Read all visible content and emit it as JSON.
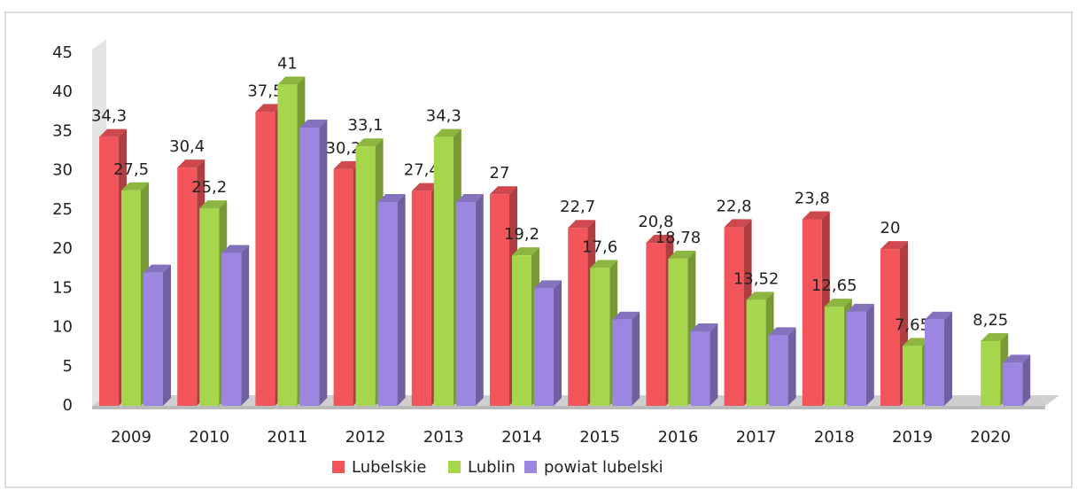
{
  "chart_data": {
    "type": "bar3d",
    "categories": [
      "2009",
      "2010",
      "2011",
      "2012",
      "2013",
      "2014",
      "2015",
      "2016",
      "2017",
      "2018",
      "2019",
      "2020"
    ],
    "series": [
      {
        "name": "Lubelskie",
        "color": "#f2565a",
        "values": [
          34.3,
          30.4,
          37.5,
          30.2,
          27.4,
          27,
          22.7,
          20.8,
          22.8,
          23.8,
          20,
          null
        ],
        "value_labels": [
          "34,3",
          "30,4",
          "37,5",
          "30,2",
          "27,4",
          "27",
          "22,7",
          "20,8",
          "22,8",
          "23,8",
          "20",
          null
        ]
      },
      {
        "name": "Lublin",
        "color": "#a5d64b",
        "values": [
          27.5,
          25.2,
          41,
          33.1,
          34.3,
          19.2,
          17.6,
          18.78,
          13.52,
          12.65,
          7.65,
          8.25
        ],
        "value_labels": [
          "27,5",
          "25,2",
          "41",
          "33,1",
          "34,3",
          "19,2",
          "17,6",
          "18,78",
          "13,52",
          "12,65",
          "7,65",
          "8,25"
        ]
      },
      {
        "name": "powiat lubelski",
        "color": "#9c86e0",
        "values": [
          17,
          19.5,
          35.5,
          26,
          26,
          15,
          11,
          9.5,
          9,
          12,
          11,
          5.5
        ]
      }
    ],
    "ylim": [
      0,
      45
    ],
    "yticks": [
      0,
      5,
      10,
      15,
      20,
      25,
      30,
      35,
      40,
      45
    ],
    "legend": "bottom"
  }
}
